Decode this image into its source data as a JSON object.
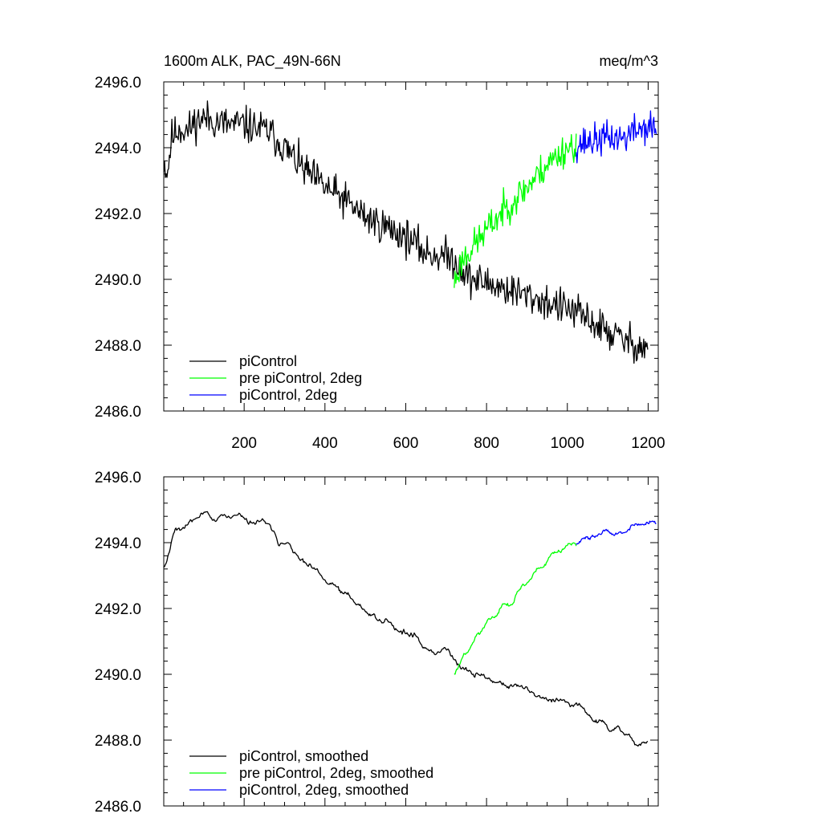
{
  "chart_data": [
    {
      "type": "line",
      "title": "1600m ALK, PAC_49N-66N",
      "units": "meq/m^3",
      "xlim": [
        1,
        1225
      ],
      "ylim": [
        2486.0,
        2496.0
      ],
      "xticks": [
        200,
        400,
        600,
        800,
        1000,
        1200
      ],
      "xticklabels": [
        "200",
        "400",
        "600",
        "800",
        "1000",
        "1200"
      ],
      "yticks": [
        2486.0,
        2488.0,
        2490.0,
        2492.0,
        2494.0,
        2496.0
      ],
      "yticklabels": [
        "2486.0",
        "2488.0",
        "2490.0",
        "2492.0",
        "2494.0",
        "2496.0"
      ],
      "series": [
        {
          "name": "piControl",
          "color": "#000000",
          "noise": 0.55,
          "seed": 11,
          "x": [
            1,
            10,
            20,
            40,
            60,
            80,
            100,
            130,
            160,
            200,
            230,
            260,
            300,
            350,
            400,
            450,
            500,
            550,
            600,
            650,
            700,
            720,
            760,
            800,
            850,
            900,
            950,
            1000,
            1050,
            1100,
            1150,
            1200
          ],
          "y": [
            2493.6,
            2493.2,
            2494.3,
            2494.6,
            2494.5,
            2494.8,
            2494.9,
            2494.8,
            2494.7,
            2494.7,
            2494.6,
            2494.5,
            2494.0,
            2493.3,
            2492.8,
            2492.4,
            2491.9,
            2491.6,
            2491.3,
            2490.8,
            2490.7,
            2490.6,
            2490.0,
            2489.9,
            2489.7,
            2489.5,
            2489.3,
            2489.1,
            2488.8,
            2488.4,
            2488.1,
            2487.9
          ]
        },
        {
          "name": "pre piControl, 2deg",
          "color": "#00ff00",
          "noise": 0.5,
          "seed": 23,
          "x": [
            720,
            740,
            780,
            800,
            850,
            900,
            950,
            1000,
            1022
          ],
          "y": [
            2489.9,
            2490.6,
            2491.2,
            2491.5,
            2492.2,
            2492.8,
            2493.5,
            2494.0,
            2494.1
          ]
        },
        {
          "name": "piControl, 2deg",
          "color": "#0000ff",
          "noise": 0.5,
          "seed": 37,
          "x": [
            1022,
            1060,
            1100,
            1140,
            1180,
            1220
          ],
          "y": [
            2494.1,
            2494.2,
            2494.3,
            2494.3,
            2494.6,
            2494.6
          ]
        }
      ],
      "legend_position": "bottom-left"
    },
    {
      "type": "line",
      "title": "",
      "units": "",
      "xlim": [
        1,
        1225
      ],
      "ylim": [
        2486.0,
        2496.0
      ],
      "xticks": [
        200,
        400,
        600,
        800,
        1000,
        1200
      ],
      "xticklabels": [],
      "yticks": [
        2486.0,
        2488.0,
        2490.0,
        2492.0,
        2494.0,
        2496.0
      ],
      "yticklabels": [
        "2486.0",
        "2488.0",
        "2490.0",
        "2492.0",
        "2494.0",
        "2496.0"
      ],
      "series": [
        {
          "name": "piControl, smoothed",
          "color": "#000000",
          "noise": 0.55,
          "seed": 11,
          "smooth": 5,
          "x": [
            1,
            10,
            20,
            40,
            60,
            80,
            100,
            130,
            160,
            200,
            230,
            260,
            300,
            350,
            400,
            450,
            500,
            550,
            600,
            650,
            700,
            720,
            760,
            800,
            850,
            900,
            950,
            1000,
            1050,
            1100,
            1150,
            1200
          ],
          "y": [
            2493.6,
            2493.2,
            2494.3,
            2494.6,
            2494.5,
            2494.8,
            2494.9,
            2494.8,
            2494.7,
            2494.7,
            2494.6,
            2494.5,
            2494.0,
            2493.3,
            2492.8,
            2492.4,
            2491.9,
            2491.6,
            2491.3,
            2490.8,
            2490.7,
            2490.6,
            2490.0,
            2489.9,
            2489.7,
            2489.5,
            2489.3,
            2489.1,
            2488.8,
            2488.4,
            2488.1,
            2487.9
          ]
        },
        {
          "name": "pre piControl, 2deg, smoothed",
          "color": "#00ff00",
          "noise": 0.5,
          "seed": 23,
          "smooth": 5,
          "x": [
            720,
            740,
            780,
            800,
            850,
            900,
            950,
            1000,
            1022
          ],
          "y": [
            2489.9,
            2490.6,
            2491.2,
            2491.5,
            2492.2,
            2492.8,
            2493.5,
            2494.0,
            2494.1
          ]
        },
        {
          "name": "piControl, 2deg, smoothed",
          "color": "#0000ff",
          "noise": 0.5,
          "seed": 37,
          "smooth": 5,
          "x": [
            1022,
            1060,
            1100,
            1140,
            1180,
            1220
          ],
          "y": [
            2494.1,
            2494.2,
            2494.3,
            2494.3,
            2494.6,
            2494.6
          ]
        }
      ],
      "legend_position": "bottom-left"
    }
  ]
}
